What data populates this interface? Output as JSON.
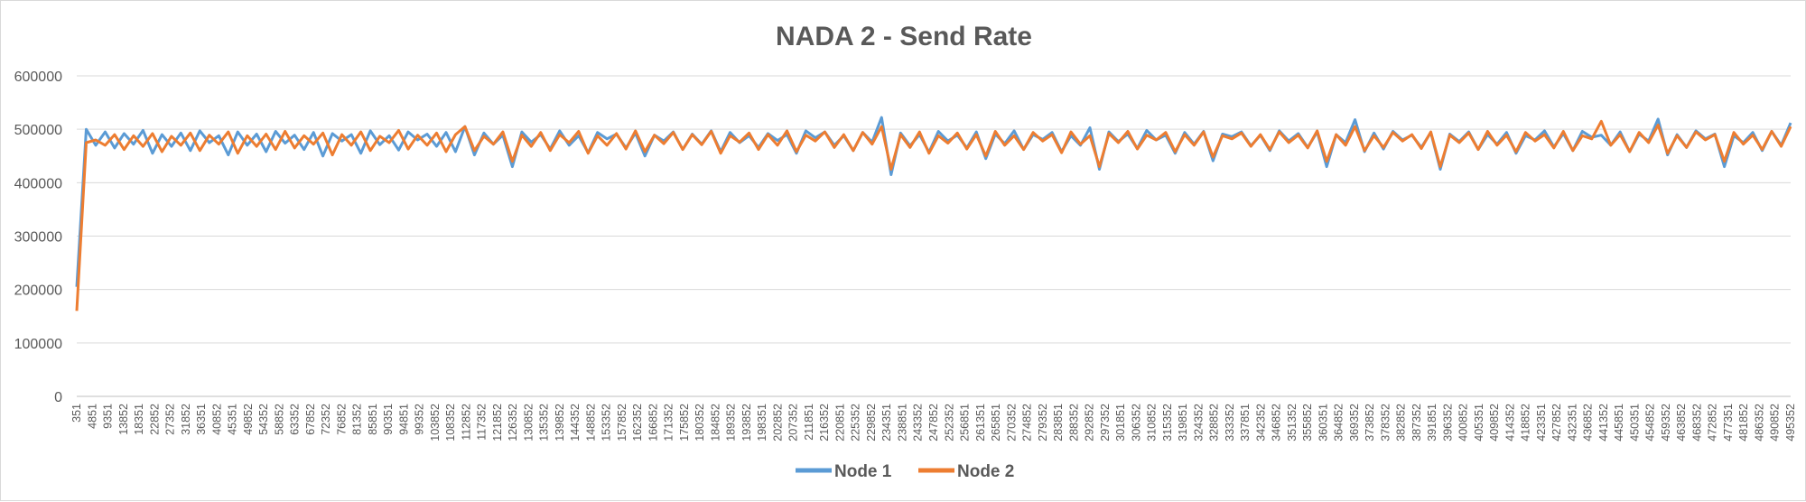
{
  "chart_data": {
    "type": "line",
    "title": "NADA 2 - Send Rate",
    "xlabel": "",
    "ylabel": "",
    "ylim": [
      0,
      600000
    ],
    "y_ticks": [
      "0",
      "100000",
      "200000",
      "300000",
      "400000",
      "500000",
      "600000"
    ],
    "grid": "horizontal",
    "legend_position": "bottom",
    "x_ticks": [
      "351",
      "4851",
      "9351",
      "13852",
      "18351",
      "22852",
      "27352",
      "31852",
      "36351",
      "40852",
      "45351",
      "49852",
      "54352",
      "58852",
      "63352",
      "67852",
      "72352",
      "76852",
      "81352",
      "85851",
      "90351",
      "94851",
      "99352",
      "103852",
      "108352",
      "112852",
      "117352",
      "121852",
      "126352",
      "130852",
      "135352",
      "139852",
      "144352",
      "148852",
      "153352",
      "157852",
      "162352",
      "166852",
      "171352",
      "175852",
      "180352",
      "184852",
      "189352",
      "193852",
      "198351",
      "202852",
      "207352",
      "211851",
      "216352",
      "220851",
      "225352",
      "229852",
      "234351",
      "238851",
      "243352",
      "247852",
      "252352",
      "256851",
      "261351",
      "265851",
      "270352",
      "274852",
      "279352",
      "283851",
      "288352",
      "292852",
      "297352",
      "301851",
      "306352",
      "310852",
      "315352",
      "319851",
      "324352",
      "328852",
      "333352",
      "337851",
      "342352",
      "346852",
      "351352",
      "355852",
      "360351",
      "364852",
      "369352",
      "373852",
      "378352",
      "382852",
      "387352",
      "391851",
      "396352",
      "400852",
      "405351",
      "409852",
      "414352",
      "418852",
      "423351",
      "427852",
      "432351",
      "436852",
      "441352",
      "445851",
      "450351",
      "454852",
      "459352",
      "463852",
      "468352",
      "472852",
      "477351",
      "481852",
      "486352",
      "490852",
      "495352"
    ],
    "series": [
      {
        "name": "Node 1",
        "color": "#5b9bd5",
        "x_range": [
          351,
          495352
        ],
        "values": [
          205000,
          500000,
          470000,
          495000,
          465000,
          492000,
          472000,
          498000,
          455000,
          490000,
          468000,
          493000,
          460000,
          497000,
          475000,
          488000,
          452000,
          495000,
          470000,
          491000,
          458000,
          496000,
          474000,
          489000,
          462000,
          494000,
          450000,
          492000,
          478000,
          490000,
          455000,
          497000,
          471000,
          488000,
          461000,
          495000,
          480000,
          491000,
          468000,
          494000,
          458000,
          505000,
          452000,
          493000,
          472000,
          489000,
          430000,
          495000,
          476000,
          490000,
          463000,
          497000,
          470000,
          488000,
          456000,
          494000,
          482000,
          491000,
          465000,
          493000,
          450000,
          489000,
          478000,
          495000,
          462000,
          491000,
          472000,
          497000,
          458000,
          494000,
          475000,
          488000,
          466000,
          492000,
          479000,
          490000,
          455000,
          497000,
          484000,
          495000,
          470000,
          488000,
          460000,
          494000,
          476000,
          522000,
          415000,
          493000,
          469000,
          490000,
          457000,
          496000,
          478000,
          489000,
          465000,
          495000,
          445000,
          491000,
          473000,
          497000,
          462000,
          490000,
          481000,
          494000,
          458000,
          488000,
          470000,
          503000,
          425000,
          495000,
          477000,
          491000,
          464000,
          498000,
          480000,
          489000,
          455000,
          494000,
          472000,
          496000,
          441000,
          491000,
          486000,
          495000,
          469000,
          489000,
          460000,
          497000,
          478000,
          492000,
          466000,
          495000,
          430000,
          490000,
          475000,
          518000,
          458000,
          493000,
          463000,
          496000,
          480000,
          489000,
          466000,
          494000,
          425000,
          491000,
          477000,
          495000,
          462000,
          490000,
          472000,
          494000,
          455000,
          488000,
          480000,
          497000,
          467000,
          492000,
          460000,
          496000,
          485000,
          489000,
          470000,
          495000,
          458000,
          491000,
          478000,
          519000,
          452000,
          490000,
          466000,
          497000,
          482000,
          491000,
          430000,
          488000,
          475000,
          494000,
          460000,
          496000,
          470000,
          512000
        ],
        "values_note": "sampled along x_range at uniform steps"
      },
      {
        "name": "Node 2",
        "color": "#ed7d31",
        "x_range": [
          351,
          495352
        ],
        "values": [
          160000,
          475000,
          480000,
          470000,
          490000,
          462000,
          488000,
          468000,
          492000,
          458000,
          487000,
          470000,
          493000,
          460000,
          489000,
          472000,
          495000,
          455000,
          488000,
          468000,
          491000,
          462000,
          496000,
          465000,
          488000,
          472000,
          493000,
          452000,
          490000,
          470000,
          495000,
          460000,
          487000,
          475000,
          498000,
          463000,
          489000,
          470000,
          493000,
          458000,
          490000,
          505000,
          460000,
          487000,
          472000,
          495000,
          440000,
          489000,
          468000,
          494000,
          460000,
          490000,
          475000,
          496000,
          455000,
          488000,
          470000,
          492000,
          463000,
          497000,
          458000,
          489000,
          473000,
          494000,
          462000,
          490000,
          471000,
          496000,
          455000,
          488000,
          476000,
          493000,
          462000,
          490000,
          470000,
          497000,
          458000,
          489000,
          478000,
          495000,
          466000,
          490000,
          460000,
          494000,
          472000,
          505000,
          425000,
          490000,
          466000,
          495000,
          455000,
          488000,
          474000,
          493000,
          463000,
          490000,
          450000,
          496000,
          470000,
          488000,
          462000,
          494000,
          478000,
          490000,
          456000,
          495000,
          472000,
          488000,
          430000,
          492000,
          475000,
          496000,
          463000,
          489000,
          480000,
          494000,
          458000,
          490000,
          470000,
          495000,
          448000,
          488000,
          482000,
          493000,
          468000,
          490000,
          462000,
          495000,
          475000,
          489000,
          465000,
          497000,
          440000,
          490000,
          470000,
          505000,
          460000,
          488000,
          466000,
          494000,
          478000,
          490000,
          464000,
          495000,
          430000,
          489000,
          475000,
          493000,
          462000,
          496000,
          470000,
          489000,
          458000,
          494000,
          478000,
          490000,
          465000,
          496000,
          460000,
          488000,
          482000,
          515000,
          470000,
          490000,
          458000,
          494000,
          475000,
          508000,
          455000,
          488000,
          466000,
          495000,
          480000,
          490000,
          440000,
          494000,
          472000,
          489000,
          462000,
          496000,
          468000,
          505000
        ],
        "values_note": "sampled along x_range at uniform steps"
      }
    ]
  }
}
